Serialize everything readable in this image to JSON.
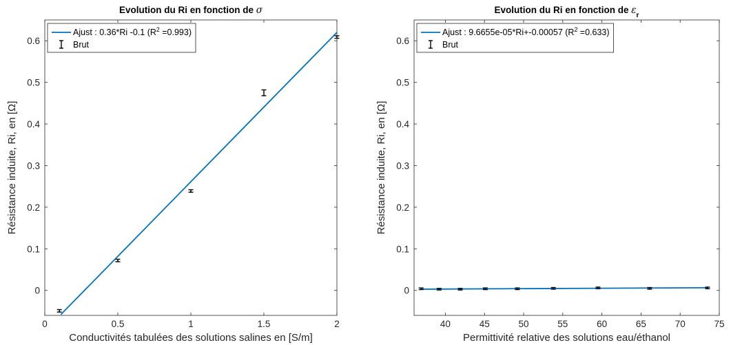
{
  "chart_data": [
    {
      "type": "scatter",
      "title": "Evolution du Ri en fonction de σ",
      "xlabel": "Conductivités tabulées des solutions salines en [S/m]",
      "ylabel": "Résistance induite, Ri, en [Ω]",
      "xlim": [
        0,
        2
      ],
      "ylim": [
        -0.06,
        0.65
      ],
      "xticks": [
        0,
        0.5,
        1,
        1.5,
        2
      ],
      "xtick_labels": [
        "0",
        "0.5",
        "1",
        "1.5",
        "2"
      ],
      "yticks": [
        0,
        0.1,
        0.2,
        0.3,
        0.4,
        0.5,
        0.6
      ],
      "ytick_labels": [
        "0",
        "0.1",
        "0.2",
        "0.3",
        "0.4",
        "0.5",
        "0.6"
      ],
      "legend_position": "top-left",
      "series": [
        {
          "name": "Ajust : 0.36*Ri -0.1 (R² =0.993)",
          "kind": "line",
          "color": "#0072BD",
          "x": [
            0.11,
            2.0
          ],
          "y": [
            -0.058,
            0.62
          ]
        },
        {
          "name": "Brut",
          "kind": "errorbar",
          "color": "#000000",
          "x": [
            0.1,
            0.5,
            1.0,
            1.5,
            2.0
          ],
          "y": [
            -0.049,
            0.072,
            0.239,
            0.475,
            0.609
          ],
          "err": [
            0.002,
            0.002,
            0.002,
            0.006,
            0.002
          ]
        }
      ]
    },
    {
      "type": "scatter",
      "title": "Evolution du Ri en fonction de ε_r",
      "xlabel": "Permittivité relative des solutions eau/éthanol",
      "ylabel": "Résistance induite, Ri, en [Ω]",
      "xlim": [
        36,
        75
      ],
      "ylim": [
        -0.06,
        0.65
      ],
      "xticks": [
        40,
        45,
        50,
        55,
        60,
        65,
        70,
        75
      ],
      "xtick_labels": [
        "40",
        "45",
        "50",
        "55",
        "60",
        "65",
        "70",
        "75"
      ],
      "yticks": [
        0,
        0.1,
        0.2,
        0.3,
        0.4,
        0.5,
        0.6
      ],
      "ytick_labels": [
        "0",
        "0.1",
        "0.2",
        "0.3",
        "0.4",
        "0.5",
        "0.6"
      ],
      "legend_position": "top-left",
      "series": [
        {
          "name": "Ajust : 9.6655e-05*Ri+-0.00057 (R² =0.633)",
          "kind": "line",
          "color": "#0072BD",
          "x": [
            36.8,
            73.6
          ],
          "y": [
            0.003,
            0.0065
          ]
        },
        {
          "name": "Brut",
          "kind": "errorbar",
          "color": "#000000",
          "x": [
            36.9,
            39.2,
            41.9,
            45.1,
            49.2,
            53.8,
            59.5,
            66.1,
            73.5
          ],
          "y": [
            0.004,
            0.003,
            0.003,
            0.004,
            0.004,
            0.005,
            0.006,
            0.005,
            0.006
          ],
          "err": [
            0.001,
            0.001,
            0.001,
            0.001,
            0.001,
            0.001,
            0.001,
            0.001,
            0.001
          ]
        }
      ]
    }
  ]
}
